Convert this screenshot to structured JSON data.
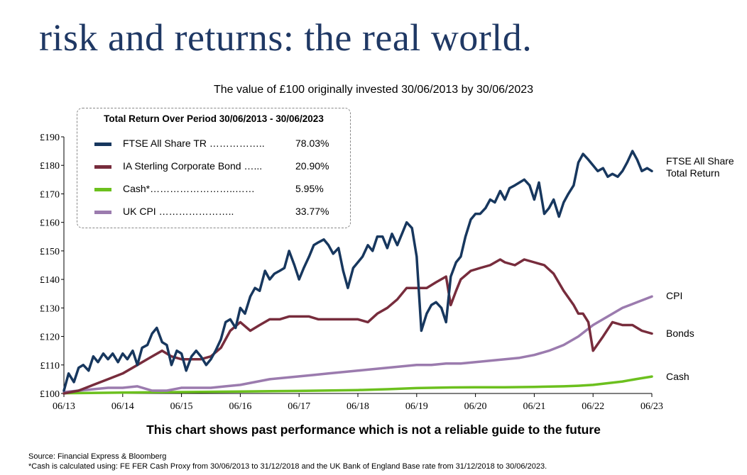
{
  "page": {
    "title": "risk and returns: the real world.",
    "subtitle": "The value of £100 originally invested 30/06/2013 by 30/06/2023",
    "disclaimer": "This chart shows past performance which is not a reliable guide to the future",
    "source_line": "Source: Financial Express & Bloomberg",
    "cash_note": "*Cash is calculated using:  FE FER Cash Proxy from 30/06/2013 to 31/12/2018 and the UK Bank of England Base rate from 31/12/2018 to 30/06/2023."
  },
  "legend": {
    "title": "Total Return Over Period 30/06/2013 - 30/06/2023",
    "items": [
      {
        "name": "FTSE All Share TR",
        "dots": "……………..",
        "value": "78.03%",
        "color": "#17375e"
      },
      {
        "name": "IA Sterling Corporate Bond",
        "dots": "…...",
        "value": "20.90%",
        "color": "#772c3c"
      },
      {
        "name": "Cash*",
        "dots": "……………………..……",
        "value": "5.95%",
        "color": "#6cc01e"
      },
      {
        "name": "UK CPI",
        "dots": "…………………..",
        "value": "33.77%",
        "color": "#9b7bae"
      }
    ]
  },
  "end_labels": {
    "ftse": "FTSE All Share\nTotal Return",
    "cpi": "CPI",
    "bonds": "Bonds",
    "cash": "Cash"
  },
  "chart_data": {
    "type": "line",
    "x_tick_labels": [
      "06/13",
      "06/14",
      "06/15",
      "06/16",
      "06/17",
      "06/18",
      "06/19",
      "06/20",
      "06/21",
      "06/22",
      "06/23"
    ],
    "y_tick_labels": [
      "£100",
      "£110",
      "£120",
      "£130",
      "£140",
      "£150",
      "£160",
      "£170",
      "£180",
      "£190"
    ],
    "xlim": [
      2013.5,
      2023.5
    ],
    "ylim": [
      100,
      190
    ],
    "grid": false,
    "legend_position": "top-left",
    "series": [
      {
        "key": "ftse",
        "color": "#17375e",
        "x": [
          2013.5,
          2013.58,
          2013.67,
          2013.75,
          2013.83,
          2013.92,
          2014.0,
          2014.08,
          2014.17,
          2014.25,
          2014.33,
          2014.42,
          2014.5,
          2014.58,
          2014.67,
          2014.75,
          2014.83,
          2014.92,
          2015.0,
          2015.08,
          2015.17,
          2015.25,
          2015.33,
          2015.42,
          2015.5,
          2015.58,
          2015.67,
          2015.75,
          2015.83,
          2015.92,
          2016.0,
          2016.08,
          2016.17,
          2016.25,
          2016.33,
          2016.42,
          2016.5,
          2016.58,
          2016.67,
          2016.75,
          2016.83,
          2016.92,
          2017.0,
          2017.08,
          2017.17,
          2017.25,
          2017.33,
          2017.42,
          2017.5,
          2017.58,
          2017.67,
          2017.75,
          2017.83,
          2017.92,
          2018.0,
          2018.08,
          2018.17,
          2018.25,
          2018.33,
          2018.42,
          2018.5,
          2018.58,
          2018.67,
          2018.75,
          2018.83,
          2018.92,
          2019.0,
          2019.08,
          2019.17,
          2019.25,
          2019.33,
          2019.42,
          2019.5,
          2019.58,
          2019.67,
          2019.75,
          2019.83,
          2019.92,
          2020.0,
          2020.08,
          2020.17,
          2020.25,
          2020.33,
          2020.42,
          2020.5,
          2020.58,
          2020.67,
          2020.75,
          2020.83,
          2020.92,
          2021.0,
          2021.08,
          2021.17,
          2021.25,
          2021.33,
          2021.42,
          2021.5,
          2021.58,
          2021.67,
          2021.75,
          2021.83,
          2021.92,
          2022.0,
          2022.08,
          2022.17,
          2022.25,
          2022.33,
          2022.42,
          2022.5,
          2022.58,
          2022.67,
          2022.75,
          2022.83,
          2022.92,
          2023.0,
          2023.08,
          2023.17,
          2023.25,
          2023.33,
          2023.42,
          2023.5
        ],
        "values": [
          101,
          107,
          104,
          109,
          110,
          108,
          113,
          111,
          114,
          112,
          114,
          111,
          114,
          112,
          115,
          110,
          116,
          117,
          121,
          123,
          118,
          117,
          110,
          115,
          114,
          108,
          113,
          115,
          113,
          110,
          112,
          115,
          119,
          125,
          126,
          123,
          130,
          128,
          134,
          137,
          136,
          143,
          140,
          142,
          143,
          144,
          150,
          145,
          140,
          144,
          148,
          152,
          153,
          154,
          152,
          149,
          151,
          143,
          137,
          144,
          146,
          148,
          152,
          150,
          155,
          155,
          151,
          156,
          152,
          156,
          160,
          158,
          148,
          122,
          128,
          131,
          132,
          130,
          125,
          141,
          146,
          148,
          155,
          161,
          163,
          163,
          165,
          168,
          167,
          171,
          168,
          172,
          173,
          174,
          175,
          173,
          168,
          174,
          163,
          165,
          168,
          162,
          167,
          170,
          173,
          181,
          184,
          182,
          180,
          178,
          179,
          176,
          177,
          176,
          178,
          181,
          185,
          182,
          178,
          179,
          178
        ],
        "note": "values approximate, read from chart"
      },
      {
        "key": "bonds",
        "color": "#772c3c",
        "x": [
          2013.5,
          2013.75,
          2014.0,
          2014.25,
          2014.5,
          2014.75,
          2015.0,
          2015.17,
          2015.33,
          2015.5,
          2015.67,
          2015.83,
          2016.0,
          2016.17,
          2016.33,
          2016.5,
          2016.67,
          2016.83,
          2017.0,
          2017.17,
          2017.33,
          2017.5,
          2017.67,
          2017.83,
          2018.0,
          2018.17,
          2018.33,
          2018.5,
          2018.67,
          2018.83,
          2019.0,
          2019.17,
          2019.33,
          2019.5,
          2019.67,
          2019.83,
          2020.0,
          2020.08,
          2020.17,
          2020.25,
          2020.42,
          2020.58,
          2020.75,
          2020.92,
          2021.0,
          2021.17,
          2021.33,
          2021.5,
          2021.67,
          2021.83,
          2022.0,
          2022.17,
          2022.25,
          2022.33,
          2022.42,
          2022.5,
          2022.67,
          2022.83,
          2023.0,
          2023.17,
          2023.33,
          2023.5
        ],
        "values": [
          100,
          101,
          103,
          105,
          107,
          110,
          113,
          115,
          113,
          112,
          112,
          112,
          113,
          116,
          122,
          125,
          122,
          124,
          126,
          126,
          127,
          127,
          127,
          126,
          126,
          126,
          126,
          126,
          125,
          128,
          130,
          133,
          137,
          137,
          137,
          139,
          141,
          131,
          136,
          140,
          143,
          144,
          145,
          147,
          146,
          145,
          147,
          146,
          145,
          142,
          136,
          131,
          128,
          128,
          125,
          115,
          120,
          125,
          124,
          124,
          122,
          121
        ]
      },
      {
        "key": "cpi",
        "color": "#9b7bae",
        "x": [
          2013.5,
          2013.75,
          2014.0,
          2014.25,
          2014.5,
          2014.75,
          2015.0,
          2015.25,
          2015.5,
          2015.75,
          2016.0,
          2016.25,
          2016.5,
          2016.75,
          2017.0,
          2017.25,
          2017.5,
          2017.75,
          2018.0,
          2018.25,
          2018.5,
          2018.75,
          2019.0,
          2019.25,
          2019.5,
          2019.75,
          2020.0,
          2020.25,
          2020.5,
          2020.75,
          2021.0,
          2021.25,
          2021.5,
          2021.75,
          2022.0,
          2022.25,
          2022.5,
          2022.75,
          2023.0,
          2023.25,
          2023.5
        ],
        "values": [
          100.5,
          101,
          101.5,
          102,
          102,
          102.5,
          101,
          101,
          102,
          102,
          102,
          102.5,
          103,
          104,
          105,
          105.5,
          106,
          106.5,
          107,
          107.5,
          108,
          108.5,
          109,
          109.5,
          110,
          110,
          110.5,
          110.5,
          111,
          111.5,
          112,
          112.5,
          113.5,
          115,
          117,
          120,
          124,
          127,
          130,
          132,
          134
        ]
      },
      {
        "key": "cash",
        "color": "#6cc01e",
        "x": [
          2013.5,
          2014.5,
          2015.5,
          2016.5,
          2017.5,
          2018.5,
          2019.0,
          2019.5,
          2020.0,
          2020.5,
          2021.0,
          2021.5,
          2022.0,
          2022.25,
          2022.5,
          2022.75,
          2023.0,
          2023.25,
          2023.5
        ],
        "values": [
          100.1,
          100.3,
          100.5,
          100.7,
          100.9,
          101.2,
          101.5,
          101.9,
          102.1,
          102.2,
          102.2,
          102.3,
          102.5,
          102.7,
          103.0,
          103.6,
          104.2,
          105.1,
          105.95
        ]
      }
    ]
  }
}
